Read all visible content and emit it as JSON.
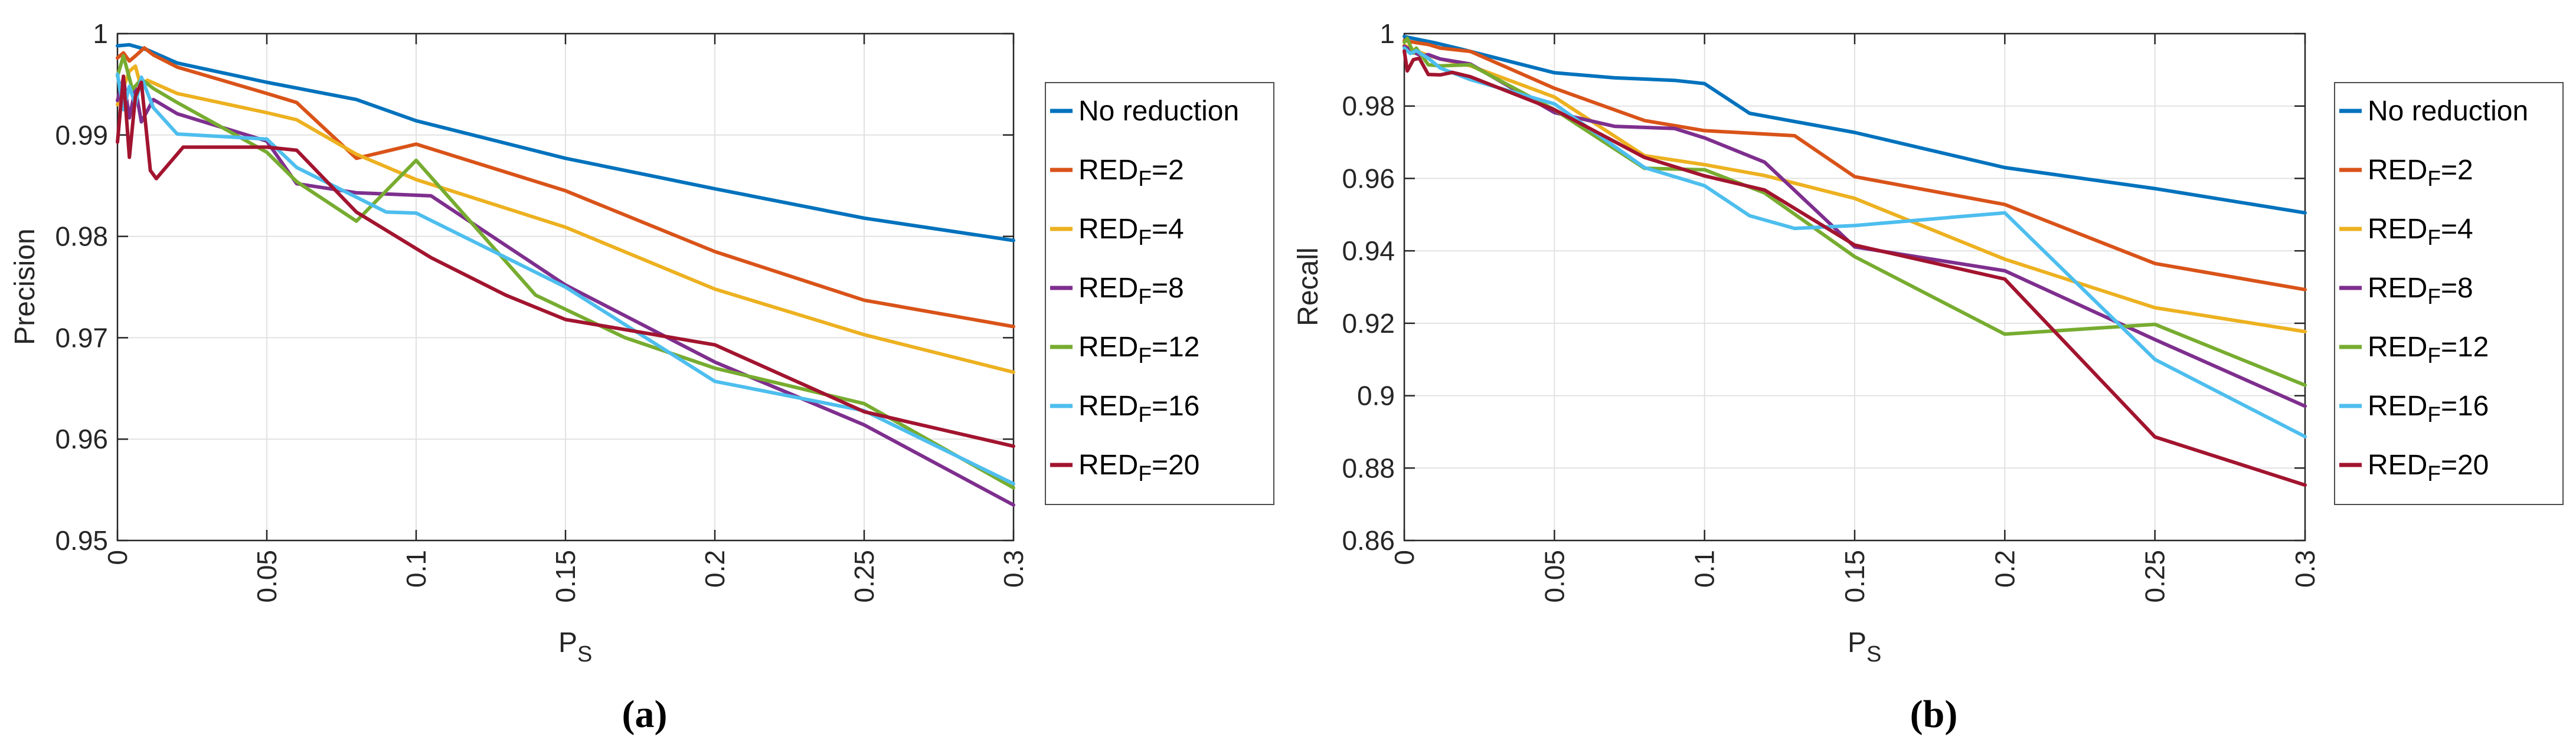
{
  "figure": {
    "caption_a": "(a)",
    "caption_b": "(b)",
    "background": "#ffffff",
    "axis_color": "#262626",
    "grid_color": "#e2e2e2"
  },
  "legend": {
    "position": "right-outside",
    "entries": [
      "No reduction",
      "RED_F=2",
      "RED_F=4",
      "RED_F=8",
      "RED_F=12",
      "RED_F=16",
      "RED_F=20"
    ]
  },
  "chart_data": [
    {
      "type": "line",
      "title": "",
      "ylabel": "Precision",
      "xlabel_pre": "P",
      "xlabel_sub": "S",
      "caption": "(a)",
      "xlim": [
        0,
        0.3
      ],
      "ylim": [
        0.95,
        1.0
      ],
      "grid": true,
      "xticks": [
        0,
        0.05,
        0.1,
        0.15,
        0.2,
        0.25,
        0.3
      ],
      "xtick_labels": [
        "0",
        "0.05",
        "0.1",
        "0.15",
        "0.2",
        "0.25",
        "0.3"
      ],
      "yticks": [
        0.95,
        0.96,
        0.97,
        0.98,
        0.99,
        1.0
      ],
      "ytick_labels": [
        "0.95",
        "0.96",
        "0.97",
        "0.98",
        "0.99",
        "1"
      ],
      "series": [
        {
          "name": "No reduction",
          "pre": "No reduction",
          "sub": "",
          "post": "",
          "color": "#0072BD",
          "x": [
            0,
            0.004,
            0.01,
            0.02,
            0.05,
            0.08,
            0.1,
            0.15,
            0.2,
            0.25,
            0.3
          ],
          "y": [
            0.9988,
            0.9989,
            0.9984,
            0.9971,
            0.9952,
            0.9935,
            0.9914,
            0.9877,
            0.9847,
            0.9818,
            0.9796
          ]
        },
        {
          "name": "RED_F=2",
          "pre": "RED",
          "sub": "F",
          "post": "=2",
          "color": "#D95319",
          "x": [
            0,
            0.002,
            0.004,
            0.006,
            0.009,
            0.012,
            0.02,
            0.05,
            0.06,
            0.08,
            0.1,
            0.15,
            0.2,
            0.25,
            0.3
          ],
          "y": [
            0.9976,
            0.9981,
            0.9973,
            0.9978,
            0.9986,
            0.9979,
            0.9967,
            0.9941,
            0.9932,
            0.9877,
            0.9891,
            0.9845,
            0.9785,
            0.9737,
            0.9711
          ]
        },
        {
          "name": "RED_F=4",
          "pre": "RED",
          "sub": "F",
          "post": "=4",
          "color": "#EDB120",
          "x": [
            0,
            0.002,
            0.004,
            0.006,
            0.008,
            0.01,
            0.02,
            0.05,
            0.06,
            0.08,
            0.1,
            0.15,
            0.2,
            0.25,
            0.3
          ],
          "y": [
            0.993,
            0.9947,
            0.9963,
            0.9968,
            0.9946,
            0.9954,
            0.9941,
            0.9922,
            0.9915,
            0.9881,
            0.9856,
            0.9809,
            0.9748,
            0.9703,
            0.9666
          ]
        },
        {
          "name": "RED_F=8",
          "pre": "RED",
          "sub": "F",
          "post": "=8",
          "color": "#7E2F8E",
          "x": [
            0,
            0.002,
            0.004,
            0.006,
            0.008,
            0.012,
            0.02,
            0.05,
            0.06,
            0.08,
            0.105,
            0.15,
            0.2,
            0.25,
            0.3
          ],
          "y": [
            0.9934,
            0.9956,
            0.9917,
            0.9946,
            0.9913,
            0.9935,
            0.9921,
            0.9894,
            0.9852,
            0.9843,
            0.984,
            0.9752,
            0.9676,
            0.9614,
            0.9535
          ]
        },
        {
          "name": "RED_F=12",
          "pre": "RED",
          "sub": "F",
          "post": "=12",
          "color": "#77AC30",
          "x": [
            0,
            0.002,
            0.005,
            0.008,
            0.012,
            0.02,
            0.05,
            0.06,
            0.08,
            0.1,
            0.14,
            0.17,
            0.2,
            0.25,
            0.3
          ],
          "y": [
            0.9958,
            0.9978,
            0.9945,
            0.9955,
            0.9946,
            0.9932,
            0.9883,
            0.9854,
            0.9815,
            0.9875,
            0.9742,
            0.97,
            0.967,
            0.9635,
            0.9552
          ]
        },
        {
          "name": "RED_F=16",
          "pre": "RED",
          "sub": "F",
          "post": "=16",
          "color": "#4DBEEE",
          "x": [
            0,
            0.002,
            0.004,
            0.006,
            0.008,
            0.012,
            0.02,
            0.05,
            0.06,
            0.09,
            0.1,
            0.15,
            0.2,
            0.25,
            0.3
          ],
          "y": [
            0.996,
            0.9925,
            0.9948,
            0.993,
            0.9957,
            0.9927,
            0.9901,
            0.9896,
            0.9868,
            0.9824,
            0.9823,
            0.975,
            0.9657,
            0.9628,
            0.9556
          ]
        },
        {
          "name": "RED_F=20",
          "pre": "RED",
          "sub": "F",
          "post": "=20",
          "color": "#A2142F",
          "x": [
            0,
            0.002,
            0.004,
            0.006,
            0.008,
            0.011,
            0.013,
            0.022,
            0.05,
            0.06,
            0.08,
            0.105,
            0.13,
            0.15,
            0.2,
            0.25,
            0.3
          ],
          "y": [
            0.9893,
            0.9958,
            0.9878,
            0.9938,
            0.9952,
            0.9865,
            0.9857,
            0.9888,
            0.9888,
            0.9885,
            0.9824,
            0.9779,
            0.9742,
            0.9718,
            0.9693,
            0.9627,
            0.9593
          ]
        }
      ]
    },
    {
      "type": "line",
      "title": "",
      "ylabel": "Recall",
      "xlabel_pre": "P",
      "xlabel_sub": "S",
      "caption": "(b)",
      "xlim": [
        0,
        0.3
      ],
      "ylim": [
        0.86,
        1.0
      ],
      "grid": true,
      "xticks": [
        0,
        0.05,
        0.1,
        0.15,
        0.2,
        0.25,
        0.3
      ],
      "xtick_labels": [
        "0",
        "0.05",
        "0.1",
        "0.15",
        "0.2",
        "0.25",
        "0.3"
      ],
      "yticks": [
        0.86,
        0.88,
        0.9,
        0.92,
        0.94,
        0.96,
        0.98,
        1.0
      ],
      "ytick_labels": [
        "0.86",
        "0.88",
        "0.9",
        "0.92",
        "0.94",
        "0.96",
        "0.98",
        "1"
      ],
      "series": [
        {
          "name": "No reduction",
          "pre": "No reduction",
          "sub": "",
          "post": "",
          "color": "#0072BD",
          "x": [
            0,
            0.004,
            0.01,
            0.02,
            0.05,
            0.07,
            0.09,
            0.1,
            0.115,
            0.15,
            0.2,
            0.25,
            0.3
          ],
          "y": [
            0.9992,
            0.9985,
            0.9975,
            0.9955,
            0.9892,
            0.9878,
            0.9871,
            0.9862,
            0.978,
            0.9727,
            0.963,
            0.9572,
            0.9505
          ]
        },
        {
          "name": "RED_F=2",
          "pre": "RED",
          "sub": "F",
          "post": "=2",
          "color": "#D95319",
          "x": [
            0,
            0.004,
            0.008,
            0.012,
            0.022,
            0.05,
            0.08,
            0.1,
            0.13,
            0.15,
            0.2,
            0.25,
            0.3
          ],
          "y": [
            0.9981,
            0.9975,
            0.997,
            0.996,
            0.9951,
            0.9849,
            0.976,
            0.9732,
            0.9718,
            0.9605,
            0.9528,
            0.9365,
            0.9293
          ]
        },
        {
          "name": "RED_F=4",
          "pre": "RED",
          "sub": "F",
          "post": "=4",
          "color": "#EDB120",
          "x": [
            0,
            0.004,
            0.008,
            0.012,
            0.022,
            0.05,
            0.08,
            0.1,
            0.12,
            0.15,
            0.2,
            0.25,
            0.3
          ],
          "y": [
            0.9968,
            0.9952,
            0.994,
            0.993,
            0.9911,
            0.9825,
            0.9663,
            0.9638,
            0.9608,
            0.9545,
            0.9377,
            0.9243,
            0.9177
          ]
        },
        {
          "name": "RED_F=8",
          "pre": "RED",
          "sub": "F",
          "post": "=8",
          "color": "#7E2F8E",
          "x": [
            0,
            0.002,
            0.004,
            0.006,
            0.008,
            0.012,
            0.022,
            0.05,
            0.07,
            0.09,
            0.1,
            0.12,
            0.15,
            0.2,
            0.25,
            0.3
          ],
          "y": [
            0.9965,
            0.9955,
            0.9945,
            0.9938,
            0.9942,
            0.993,
            0.9916,
            0.9782,
            0.9744,
            0.9738,
            0.9712,
            0.9645,
            0.9411,
            0.9345,
            0.9155,
            0.8971
          ]
        },
        {
          "name": "RED_F=12",
          "pre": "RED",
          "sub": "F",
          "post": "=12",
          "color": "#77AC30",
          "x": [
            0,
            0.001,
            0.003,
            0.004,
            0.008,
            0.012,
            0.022,
            0.05,
            0.08,
            0.1,
            0.12,
            0.15,
            0.2,
            0.25,
            0.3
          ],
          "y": [
            0.9976,
            0.9987,
            0.9946,
            0.996,
            0.9914,
            0.9911,
            0.9914,
            0.979,
            0.9628,
            0.9624,
            0.956,
            0.9384,
            0.917,
            0.9197,
            0.9029
          ]
        },
        {
          "name": "RED_F=16",
          "pre": "RED",
          "sub": "F",
          "post": "=16",
          "color": "#4DBEEE",
          "x": [
            0,
            0.002,
            0.004,
            0.006,
            0.008,
            0.012,
            0.022,
            0.05,
            0.08,
            0.1,
            0.115,
            0.13,
            0.15,
            0.2,
            0.25,
            0.3
          ],
          "y": [
            0.996,
            0.9945,
            0.9953,
            0.9942,
            0.9932,
            0.9905,
            0.9873,
            0.9806,
            0.963,
            0.958,
            0.9497,
            0.9462,
            0.947,
            0.9505,
            0.91,
            0.8887
          ]
        },
        {
          "name": "RED_F=20",
          "pre": "RED",
          "sub": "F",
          "post": "=20",
          "color": "#A2142F",
          "x": [
            0,
            0.001,
            0.003,
            0.005,
            0.008,
            0.012,
            0.016,
            0.022,
            0.05,
            0.08,
            0.1,
            0.12,
            0.15,
            0.2,
            0.25,
            0.3
          ],
          "y": [
            0.9952,
            0.9897,
            0.9928,
            0.9932,
            0.9887,
            0.9886,
            0.9893,
            0.9881,
            0.979,
            0.9658,
            0.9607,
            0.9568,
            0.9416,
            0.9322,
            0.8886,
            0.8753
          ]
        }
      ]
    }
  ]
}
